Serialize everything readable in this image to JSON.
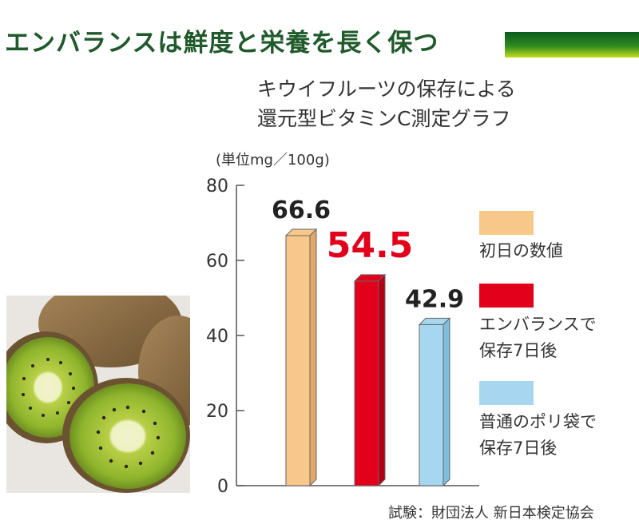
{
  "headline": "エンバランスは鮮度と栄養を長く保つ",
  "subtitle_line1": "キウイフルーツの保存による",
  "subtitle_line2": "還元型ビタミンC測定グラフ",
  "unit": "(単位mg／100g)",
  "source": "試験：財団法人 新日本検定協会",
  "colors": {
    "headline": "#1f5a2a",
    "series_initial": "#f8c88a",
    "series_enbalance": "#e2001b",
    "series_plastic": "#a7d7f0",
    "value_emphasis": "#e2001b"
  },
  "chart_data": {
    "type": "bar",
    "y_ticks": [
      "80",
      "60",
      "40",
      "20",
      "0"
    ],
    "ylim": [
      0,
      80
    ],
    "grid": false,
    "legend_position": "right",
    "series": [
      {
        "name": "初日の数値",
        "value": 66.6,
        "label": "66.6",
        "color": "#f8c88a"
      },
      {
        "name": "エンバランスで\n保存7日後",
        "value": 54.5,
        "label": "54.5",
        "color": "#e2001b"
      },
      {
        "name": "普通のポリ袋で\n保存7日後",
        "value": 42.9,
        "label": "42.9",
        "color": "#a7d7f0"
      }
    ]
  }
}
